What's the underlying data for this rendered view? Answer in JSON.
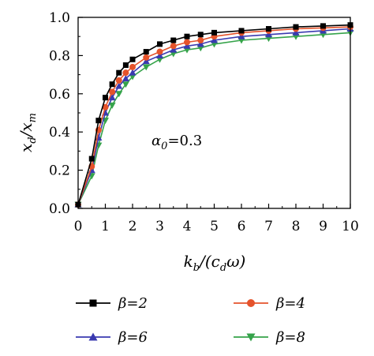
{
  "chart_data": {
    "type": "line",
    "xlabel": "kb/(cdω)",
    "ylabel": "xd/xm",
    "xlim": [
      0,
      10
    ],
    "ylim": [
      0,
      1.0
    ],
    "x_ticks": [
      "0",
      "1",
      "2",
      "3",
      "4",
      "5",
      "6",
      "7",
      "8",
      "9",
      "10"
    ],
    "y_ticks": [
      "0.0",
      "0.2",
      "0.4",
      "0.6",
      "0.8",
      "1.0"
    ],
    "grid": false,
    "legend_position": "bottom",
    "annotation": "α0=0.3",
    "x": [
      0,
      0.5,
      0.75,
      1.0,
      1.25,
      1.5,
      1.75,
      2.0,
      2.5,
      3.0,
      3.5,
      4.0,
      4.5,
      5.0,
      6.0,
      7.0,
      8.0,
      9.0,
      10.0
    ],
    "series": [
      {
        "name": "β=2",
        "color": "#000000",
        "marker": "square",
        "values": [
          0.02,
          0.26,
          0.46,
          0.58,
          0.65,
          0.71,
          0.75,
          0.78,
          0.82,
          0.86,
          0.88,
          0.9,
          0.91,
          0.92,
          0.93,
          0.94,
          0.95,
          0.955,
          0.96
        ]
      },
      {
        "name": "β=4",
        "color": "#e5532b",
        "marker": "circle",
        "values": [
          0.02,
          0.22,
          0.41,
          0.53,
          0.61,
          0.67,
          0.71,
          0.74,
          0.79,
          0.82,
          0.85,
          0.87,
          0.88,
          0.9,
          0.92,
          0.93,
          0.94,
          0.945,
          0.95
        ]
      },
      {
        "name": "β=6",
        "color": "#3a3ab0",
        "marker": "triangle-up",
        "values": [
          0.02,
          0.2,
          0.37,
          0.5,
          0.58,
          0.64,
          0.68,
          0.71,
          0.77,
          0.8,
          0.83,
          0.85,
          0.86,
          0.88,
          0.9,
          0.91,
          0.92,
          0.93,
          0.94
        ]
      },
      {
        "name": "β=8",
        "color": "#35a34a",
        "marker": "triangle-down",
        "values": [
          0.02,
          0.17,
          0.33,
          0.46,
          0.54,
          0.6,
          0.65,
          0.69,
          0.74,
          0.78,
          0.81,
          0.83,
          0.84,
          0.86,
          0.88,
          0.89,
          0.9,
          0.91,
          0.92
        ]
      }
    ]
  }
}
